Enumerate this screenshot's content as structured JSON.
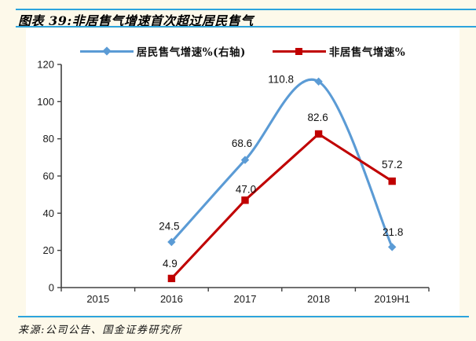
{
  "page": {
    "source": "来源:公司公告、国金证券研究所",
    "background_color": "#FDF9EA",
    "rule_color": "#2CA4DD",
    "panel_color": "#FFFFFF"
  },
  "chart_data": {
    "type": "line",
    "title": "图表 39:非居售气增速首次超过居民售气",
    "categories": [
      "2015",
      "2016",
      "2017",
      "2018",
      "2019H1"
    ],
    "xlabel": "",
    "ylabel": "",
    "ylim": [
      0,
      120
    ],
    "ytick_step": 20,
    "grid": false,
    "legend_position": "top",
    "axis_color": "#404040",
    "text_color": "#1A1A1A",
    "series": [
      {
        "name": "居民售气增速%(右轴)",
        "color": "#5B9BD5",
        "marker": "diamond",
        "smooth": true,
        "axis": "right",
        "points": [
          {
            "category": "2016",
            "value": 24.5,
            "label": "24.5",
            "label_dx": -3,
            "label_dy": -20
          },
          {
            "category": "2017",
            "value": 68.6,
            "label": "68.6",
            "label_dx": -4,
            "label_dy": -21
          },
          {
            "category": "2018",
            "value": 110.8,
            "label": "110.8",
            "label_dx": -48,
            "label_dy": -3
          },
          {
            "category": "2019H1",
            "value": 21.8,
            "label": "21.8",
            "label_dx": 1,
            "label_dy": -19
          }
        ]
      },
      {
        "name": "非居售气增速%",
        "color": "#C00000",
        "marker": "square",
        "smooth": false,
        "axis": "left",
        "points": [
          {
            "category": "2016",
            "value": 4.9,
            "label": "4.9",
            "label_dx": -2,
            "label_dy": -19
          },
          {
            "category": "2017",
            "value": 47.0,
            "label": "47.0",
            "label_dx": 1,
            "label_dy": -14
          },
          {
            "category": "2018",
            "value": 82.6,
            "label": "82.6",
            "label_dx": -1,
            "label_dy": -21
          },
          {
            "category": "2019H1",
            "value": 57.2,
            "label": "57.2",
            "label_dx": 0,
            "label_dy": -21
          }
        ]
      }
    ]
  }
}
